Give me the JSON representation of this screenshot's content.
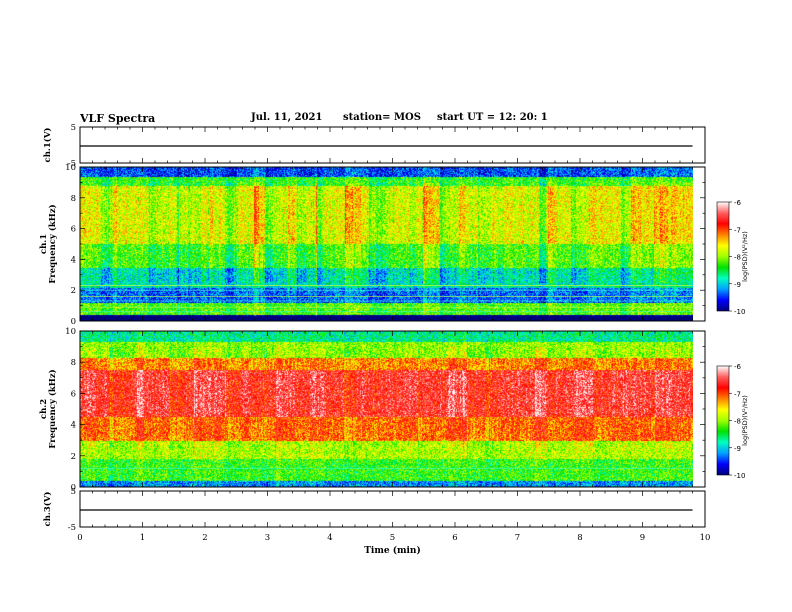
{
  "header": {
    "title": "VLF Spectra",
    "date": "Jul. 11, 2021",
    "station": "station= MOS",
    "start": "start UT =  12: 20: 1"
  },
  "colors": {
    "colormap": [
      "#00007a",
      "#0000ff",
      "#00a0ff",
      "#00ffc0",
      "#00e000",
      "#a0ff00",
      "#ffff00",
      "#ff8000",
      "#ff0000",
      "#ff6060",
      "#ffffff"
    ]
  },
  "chart_data": [
    {
      "type": "line",
      "panel": "ch1-waveform",
      "ylabel": "ch.1(V)",
      "ylim": [
        -5,
        5
      ],
      "yticks": [
        "5",
        "-5"
      ],
      "xlim": [
        0,
        10
      ],
      "series": [
        {
          "trace": "flat",
          "x": [
            0,
            9.8
          ],
          "y": [
            0,
            0
          ]
        }
      ]
    },
    {
      "type": "heatmap",
      "panel": "ch1-spectrogram",
      "ylabel": "ch.1\nFrequency (kHz)",
      "yticks": [
        "0",
        "2",
        "4",
        "6",
        "8",
        "10"
      ],
      "ylim": [
        0,
        10
      ],
      "xlim": [
        0,
        9.8
      ],
      "colorbar": {
        "label": "log(PSD)(V²/Hz)",
        "ticks": [
          "-6",
          "-7",
          "-8",
          "-9",
          "-10"
        ],
        "range": [
          -10,
          -6
        ]
      },
      "bands": [
        {
          "f": [
            0,
            0.4
          ],
          "psd": -10.0
        },
        {
          "f": [
            0.4,
            1.2
          ],
          "psd": -8.2
        },
        {
          "f": [
            1.2,
            2.2
          ],
          "psd": -9.3
        },
        {
          "f": [
            2.2,
            3.5
          ],
          "psd": -8.8
        },
        {
          "f": [
            3.5,
            5.0
          ],
          "psd": -8.2
        },
        {
          "f": [
            5.0,
            8.8
          ],
          "psd": -7.7
        },
        {
          "f": [
            8.8,
            9.4
          ],
          "psd": -8.3
        },
        {
          "f": [
            9.4,
            10.0
          ],
          "psd": -9.4
        }
      ],
      "spectral_lines_khz": [
        0.6,
        0.9,
        1.3,
        1.6,
        2.0,
        2.3
      ]
    },
    {
      "type": "heatmap",
      "panel": "ch2-spectrogram",
      "ylabel": "ch.2\nFrequency (kHz)",
      "yticks": [
        "0",
        "2",
        "4",
        "6",
        "8",
        "10"
      ],
      "ylim": [
        0,
        10
      ],
      "xlim": [
        0,
        9.8
      ],
      "colorbar": {
        "label": "log(PSD)(V²/Hz)",
        "ticks": [
          "-6",
          "-7",
          "-8",
          "-9",
          "-10"
        ],
        "range": [
          -10,
          -6
        ]
      },
      "bands": [
        {
          "f": [
            0,
            0.4
          ],
          "psd": -9.2
        },
        {
          "f": [
            0.4,
            1.8
          ],
          "psd": -8.3
        },
        {
          "f": [
            1.8,
            3.0
          ],
          "psd": -7.9
        },
        {
          "f": [
            3.0,
            4.5
          ],
          "psd": -7.1
        },
        {
          "f": [
            4.5,
            7.5
          ],
          "psd": -6.6
        },
        {
          "f": [
            7.5,
            8.3
          ],
          "psd": -7.2
        },
        {
          "f": [
            8.3,
            9.3
          ],
          "psd": -8.0
        },
        {
          "f": [
            9.3,
            10.0
          ],
          "psd": -8.7
        }
      ],
      "spectral_lines_khz": [
        1.2
      ]
    },
    {
      "type": "line",
      "panel": "ch3-waveform",
      "ylabel": "ch.3(V)",
      "ylim": [
        -5,
        5
      ],
      "yticks": [
        "5",
        "-5"
      ],
      "xlim": [
        0,
        10
      ],
      "xlabel": "Time (min)",
      "xticks": [
        "0",
        "1",
        "2",
        "3",
        "4",
        "5",
        "6",
        "7",
        "8",
        "9",
        "10"
      ],
      "series": [
        {
          "trace": "flat",
          "x": [
            0,
            9.8
          ],
          "y": [
            0,
            0
          ]
        }
      ]
    }
  ]
}
